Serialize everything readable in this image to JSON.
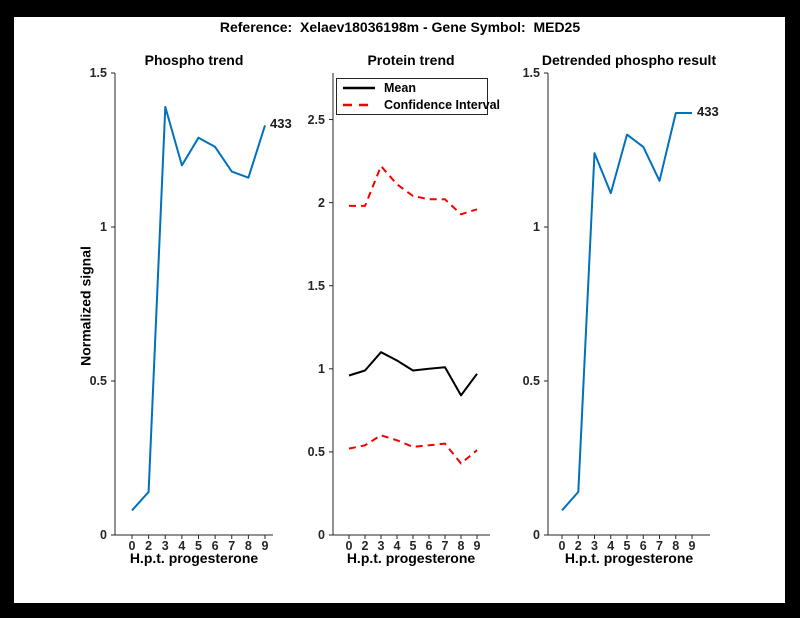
{
  "figure": {
    "title": "Reference:  Xelaev18036198m - Gene Symbol:  MED25"
  },
  "colors": {
    "line_blue": "#0072BD",
    "line_red": "#F40000",
    "line_black": "#000000",
    "axis": "#262626",
    "figure_background": "#FFFFFF",
    "frame_background": "#000000"
  },
  "chart_data": [
    {
      "type": "line",
      "title": "Phospho trend",
      "xlabel": "H.p.t. progesterone",
      "ylabel": "Normalized signal",
      "x_tick_labels": [
        "0",
        "2",
        "3",
        "4",
        "5",
        "6",
        "7",
        "8",
        "9"
      ],
      "y_tick_labels": [
        "0",
        "0.5",
        "1",
        "1.5"
      ],
      "ylim": [
        0,
        1.5
      ],
      "grid": false,
      "annotation": "433",
      "series": [
        {
          "name": "phospho-signal",
          "color": "#0072BD",
          "dash": false,
          "values": [
            0.08,
            0.14,
            1.39,
            1.2,
            1.29,
            1.26,
            1.18,
            1.16,
            1.33
          ]
        }
      ]
    },
    {
      "type": "line",
      "title": "Protein trend",
      "xlabel": "H.p.t. progesterone",
      "ylabel": "",
      "x_tick_labels": [
        "0",
        "2",
        "3",
        "4",
        "5",
        "6",
        "7",
        "8",
        "9"
      ],
      "y_tick_labels": [
        "0",
        "0.5",
        "1",
        "1.5",
        "2",
        "2.5"
      ],
      "ylim": [
        0,
        2.78
      ],
      "grid": false,
      "legend": {
        "position": "top-left",
        "items": [
          {
            "label": "Mean",
            "color": "#000000",
            "dash": false
          },
          {
            "label": "Confidence Interval",
            "color": "#F40000",
            "dash": true
          }
        ]
      },
      "series": [
        {
          "name": "mean",
          "color": "#000000",
          "dash": false,
          "values": [
            0.96,
            0.99,
            1.1,
            1.05,
            0.99,
            1.0,
            1.01,
            0.84,
            0.97
          ]
        },
        {
          "name": "confidence-interval-upper",
          "color": "#F40000",
          "dash": true,
          "values": [
            1.98,
            1.98,
            2.22,
            2.11,
            2.04,
            2.02,
            2.02,
            1.93,
            1.96
          ]
        },
        {
          "name": "confidence-interval-lower",
          "color": "#F40000",
          "dash": true,
          "values": [
            0.52,
            0.54,
            0.6,
            0.57,
            0.53,
            0.54,
            0.55,
            0.43,
            0.51
          ]
        }
      ]
    },
    {
      "type": "line",
      "title": "Detrended phospho result",
      "xlabel": "H.p.t. progesterone",
      "ylabel": "",
      "x_tick_labels": [
        "0",
        "2",
        "3",
        "4",
        "5",
        "6",
        "7",
        "8",
        "9"
      ],
      "y_tick_labels": [
        "0",
        "0.5",
        "1",
        "1.5"
      ],
      "ylim": [
        0,
        1.5
      ],
      "grid": false,
      "annotation": "433",
      "series": [
        {
          "name": "detrended-phospho-signal",
          "color": "#0072BD",
          "dash": false,
          "values": [
            0.08,
            0.14,
            1.24,
            1.11,
            1.3,
            1.26,
            1.15,
            1.37,
            1.37
          ]
        }
      ]
    }
  ]
}
